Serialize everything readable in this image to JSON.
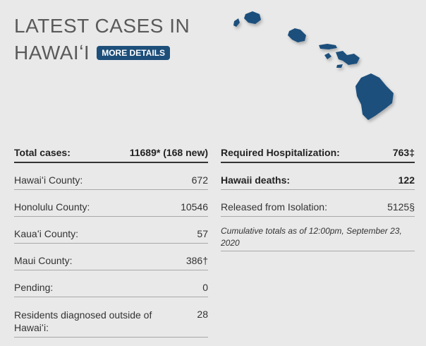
{
  "header": {
    "title_line1": "LATEST CASES IN",
    "title_line2": "HAWAIʻI",
    "more_details_label": "MORE DETAILS"
  },
  "left_table": [
    {
      "label": "Total cases:",
      "value": "11689* (168 new)"
    },
    {
      "label": "Hawaiʻi County:",
      "value": "672"
    },
    {
      "label": "Honolulu County:",
      "value": "10546"
    },
    {
      "label": "Kauaʻi County:",
      "value": "57"
    },
    {
      "label": "Maui County:",
      "value": "386†"
    },
    {
      "label": "Pending:",
      "value": "0"
    },
    {
      "label": "Residents diagnosed outside of Hawaiʻi:",
      "value": "28"
    }
  ],
  "right_table": [
    {
      "label": "Required Hospitalization:",
      "value": "763‡"
    },
    {
      "label": "Hawaii deaths:",
      "value": "122"
    },
    {
      "label": "Released from Isolation:",
      "value": "5125§"
    }
  ],
  "note": "Cumulative totals as of 12:00pm, September 23, 2020",
  "colors": {
    "accent": "#1d4f7a",
    "island": "#1e4f7b",
    "background": "#e9e9e9"
  },
  "icons": {
    "map": "hawaii-islands-map-icon"
  }
}
